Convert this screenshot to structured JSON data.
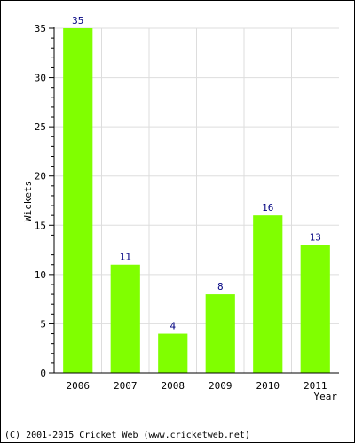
{
  "chart_data": {
    "type": "bar",
    "categories": [
      "2006",
      "2007",
      "2008",
      "2009",
      "2010",
      "2011"
    ],
    "values": [
      35,
      11,
      4,
      8,
      16,
      13
    ],
    "data_labels": [
      "35",
      "11",
      "4",
      "8",
      "16",
      "13"
    ],
    "title": "",
    "xlabel": "Year",
    "ylabel": "Wickets",
    "ylim": [
      0,
      35
    ],
    "yticks": [
      0,
      5,
      10,
      15,
      20,
      25,
      30,
      35
    ],
    "grid": true,
    "legend": "none",
    "bar_color": "#80ff00",
    "label_color": "#000080",
    "grid_color": "#dddddd"
  },
  "footer": {
    "text": "(C) 2001-2015 Cricket Web (www.cricketweb.net)"
  }
}
